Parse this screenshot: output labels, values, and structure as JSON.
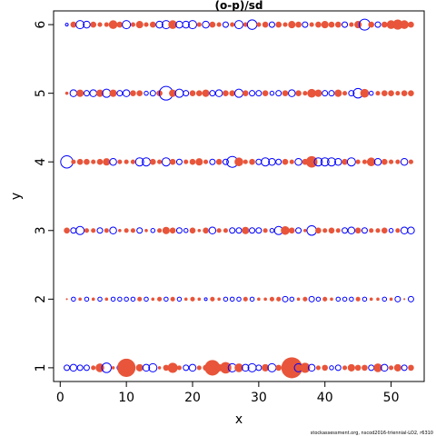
{
  "chart_data": {
    "type": "scatter",
    "subtype": "bubble residual plot",
    "title": "(o-p)/sd",
    "xlabel": "x",
    "ylabel": "y",
    "xlim": [
      -1,
      55
    ],
    "ylim": [
      0.8,
      6.2
    ],
    "x_ticks": [
      0,
      10,
      20,
      30,
      40,
      50
    ],
    "y_ticks": [
      1,
      2,
      3,
      4,
      5,
      6
    ],
    "grid": false,
    "legend": "none",
    "caption": "stockassessment.org, nscod2016-triennial-LO2, r6310",
    "colors": {
      "positive": "#e8553a",
      "negative": "#0000ff"
    },
    "encoding": {
      "size": "absolute residual",
      "filled": "positive residual",
      "open_ring": "negative residual"
    },
    "rows": [
      {
        "y": 1,
        "residuals": [
          -0.4,
          -0.5,
          -0.4,
          -0.4,
          0.3,
          0.6,
          -0.7,
          0.2,
          -0.4,
          1.3,
          0.3,
          0.5,
          -0.5,
          -0.6,
          0.2,
          0.4,
          0.7,
          0.3,
          -0.4,
          -0.5,
          0.3,
          0.4,
          1.1,
          0.5,
          0.8,
          -0.6,
          0.6,
          -0.5,
          -0.6,
          -0.4,
          0.5,
          -0.6,
          0.4,
          0.2,
          1.5,
          -0.6,
          0.7,
          -0.5,
          0.3,
          0.4,
          -0.3,
          -0.4,
          0.3,
          0.5,
          0.4,
          0.4,
          -0.4,
          0.6,
          -0.5,
          0.3,
          0.5,
          -0.4,
          0.4
        ]
      },
      {
        "y": 2,
        "residuals": [
          0.1,
          -0.3,
          0.2,
          -0.3,
          0.2,
          -0.3,
          0.2,
          -0.3,
          -0.3,
          -0.3,
          -0.3,
          0.3,
          -0.3,
          0.2,
          0.3,
          -0.3,
          0.3,
          -0.3,
          0.2,
          0.3,
          0.2,
          -0.2,
          0.3,
          0.2,
          -0.3,
          -0.3,
          -0.3,
          0.3,
          -0.3,
          0.2,
          0.2,
          0.3,
          0.3,
          -0.4,
          -0.3,
          0.2,
          0.3,
          -0.4,
          -0.3,
          0.3,
          0.2,
          -0.3,
          -0.3,
          -0.3,
          0.3,
          -0.3,
          0.2,
          0.2,
          -0.3,
          0.2,
          -0.4,
          0.1,
          -0.4
        ]
      },
      {
        "y": 3,
        "residuals": [
          0.4,
          -0.4,
          -0.6,
          0.3,
          0.3,
          -0.4,
          0.3,
          -0.5,
          0.2,
          0.3,
          0.3,
          -0.4,
          0.2,
          -0.3,
          0.3,
          0.5,
          0.4,
          -0.4,
          -0.3,
          0.4,
          0.2,
          0.4,
          -0.5,
          0.3,
          0.3,
          -0.4,
          -0.4,
          0.5,
          -0.4,
          -0.4,
          0.3,
          -0.3,
          -0.6,
          0.6,
          0.4,
          -0.4,
          0.2,
          -0.7,
          0.4,
          0.3,
          0.4,
          0.3,
          -0.4,
          -0.5,
          0.4,
          -0.4,
          0.3,
          0.3,
          0.4,
          -0.3,
          0.3,
          -0.5,
          -0.5
        ]
      },
      {
        "y": 4,
        "residuals": [
          -0.9,
          0.3,
          0.4,
          0.4,
          0.3,
          0.4,
          0.5,
          -0.5,
          0.3,
          0.3,
          0.3,
          -0.6,
          -0.6,
          0.4,
          0.3,
          -0.6,
          0.4,
          -0.4,
          0.3,
          0.4,
          0.5,
          0.3,
          -0.4,
          0.4,
          -0.4,
          -0.8,
          0.6,
          0.3,
          0.4,
          -0.4,
          -0.6,
          -0.5,
          -0.4,
          0.4,
          0.3,
          -0.5,
          0.4,
          0.8,
          -0.6,
          -0.6,
          -0.6,
          -0.5,
          0.4,
          -0.6,
          0.3,
          0.3,
          0.6,
          -0.5,
          0.4,
          0.3,
          0.3,
          -0.5,
          0.3
        ]
      },
      {
        "y": 5,
        "residuals": [
          0.2,
          -0.5,
          0.5,
          -0.4,
          -0.5,
          0.5,
          -0.6,
          0.5,
          -0.4,
          -0.5,
          0.4,
          0.4,
          -0.3,
          -0.4,
          0.4,
          -1.0,
          0.5,
          -0.6,
          -0.4,
          0.4,
          0.4,
          0.5,
          -0.4,
          -0.5,
          0.4,
          0.4,
          -0.6,
          0.4,
          -0.4,
          -0.4,
          0.4,
          -0.3,
          -0.4,
          0.4,
          -0.5,
          0.4,
          0.3,
          0.6,
          0.5,
          -0.4,
          -0.4,
          0.5,
          0.3,
          -0.4,
          -0.7,
          0.6,
          -0.3,
          0.3,
          0.4,
          0.4,
          0.3,
          0.4,
          0.4
        ]
      },
      {
        "y": 6,
        "residuals": [
          -0.2,
          0.4,
          -0.6,
          -0.5,
          0.4,
          0.3,
          0.3,
          0.6,
          0.4,
          -0.6,
          0.3,
          0.5,
          0.3,
          0.4,
          -0.5,
          -0.6,
          0.6,
          -0.5,
          -0.5,
          -0.6,
          0.3,
          -0.5,
          0.4,
          0.3,
          -0.4,
          0.3,
          -0.6,
          0.3,
          -0.7,
          0.3,
          0.4,
          -0.4,
          0.4,
          0.3,
          0.5,
          0.4,
          -0.4,
          0.3,
          0.4,
          0.5,
          0.4,
          0.4,
          -0.4,
          0.3,
          0.5,
          -0.8,
          0.4,
          -0.4,
          0.4,
          0.6,
          0.7,
          0.6,
          0.4
        ]
      }
    ]
  }
}
